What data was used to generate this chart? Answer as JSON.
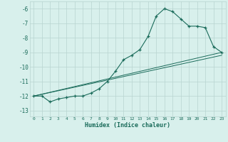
{
  "xlabel": "Humidex (Indice chaleur)",
  "bg_color": "#d8f0ec",
  "grid_color": "#b8d4d0",
  "line_color": "#1a6b5a",
  "xlim": [
    -0.5,
    23.5
  ],
  "ylim": [
    -13.4,
    -5.5
  ],
  "yticks": [
    -13,
    -12,
    -11,
    -10,
    -9,
    -8,
    -7,
    -6
  ],
  "xticks": [
    0,
    1,
    2,
    3,
    4,
    5,
    6,
    7,
    8,
    9,
    10,
    11,
    12,
    13,
    14,
    15,
    16,
    17,
    18,
    19,
    20,
    21,
    22,
    23
  ],
  "main_x": [
    0,
    1,
    2,
    3,
    4,
    5,
    6,
    7,
    8,
    9,
    10,
    11,
    12,
    13,
    14,
    15,
    16,
    17,
    18,
    19,
    20,
    21,
    22,
    23
  ],
  "main_y": [
    -12.0,
    -12.0,
    -12.4,
    -12.2,
    -12.1,
    -12.0,
    -12.0,
    -11.8,
    -11.5,
    -11.0,
    -10.3,
    -9.5,
    -9.2,
    -8.8,
    -7.9,
    -6.5,
    -6.0,
    -6.2,
    -6.7,
    -7.2,
    -7.2,
    -7.3,
    -8.6,
    -9.0
  ],
  "line2_x": [
    0,
    23
  ],
  "line2_y": [
    -12.0,
    -9.0
  ],
  "line3_x": [
    0,
    23
  ],
  "line3_y": [
    -12.0,
    -9.2
  ]
}
